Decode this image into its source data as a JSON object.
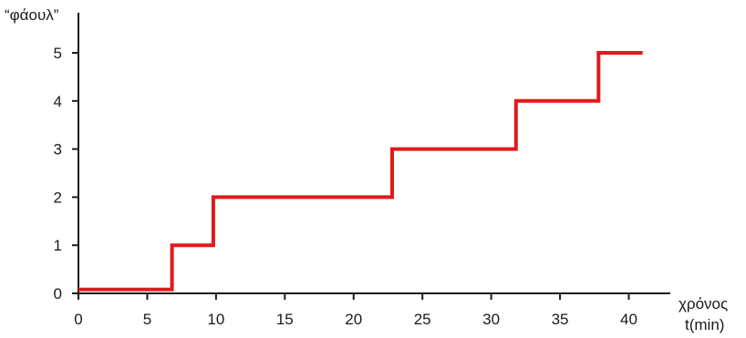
{
  "chart_data": {
    "type": "line",
    "step": true,
    "ylabel": "“φάουλ”",
    "xlabel_line1": "χρόνος",
    "xlabel_line2": "t(min)",
    "xlim": [
      0,
      42
    ],
    "ylim": [
      0,
      5.5
    ],
    "xticks": [
      0,
      5,
      10,
      15,
      20,
      25,
      30,
      35,
      40
    ],
    "yticks": [
      0,
      1,
      2,
      3,
      4,
      5
    ],
    "grid": false,
    "series": [
      {
        "color": "#e01b1b",
        "x": [
          0,
          6.8,
          6.8,
          9.8,
          9.8,
          22.8,
          22.8,
          31.8,
          31.8,
          37.8,
          37.8,
          41
        ],
        "y": [
          0.08,
          0.08,
          1,
          1,
          2,
          2,
          3,
          3,
          4,
          4,
          5,
          5
        ]
      }
    ]
  }
}
